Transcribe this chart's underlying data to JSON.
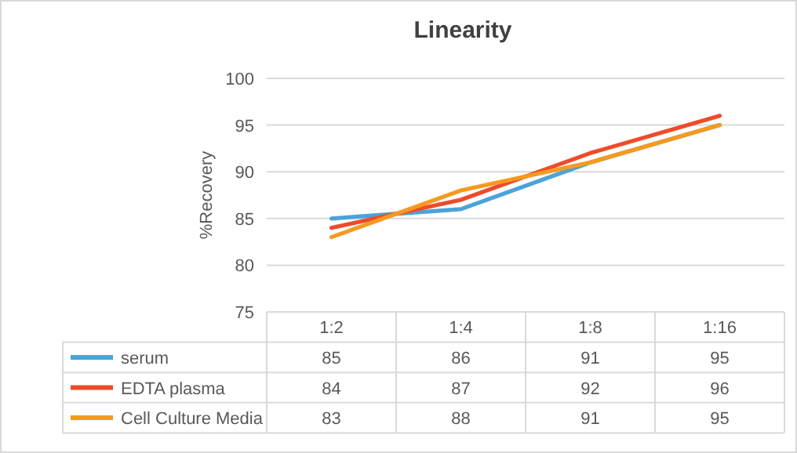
{
  "chart_data": {
    "type": "line",
    "title": "Linearity",
    "ylabel": "%Recovery",
    "categories": [
      "1:2",
      "1:4",
      "1:8",
      "1:16"
    ],
    "series": [
      {
        "name": "serum",
        "color": "#4ba3d9",
        "values": [
          85,
          86,
          91,
          95
        ]
      },
      {
        "name": "EDTA plasma",
        "color": "#ee4b2b",
        "values": [
          84,
          87,
          92,
          96
        ]
      },
      {
        "name": "Cell Culture Media",
        "color": "#f59a1f",
        "values": [
          83,
          88,
          91,
          95
        ]
      }
    ],
    "ylim": [
      75,
      100
    ],
    "yticks": [
      75,
      80,
      85,
      90,
      95,
      100
    ],
    "grid": "y",
    "legend": "bottom",
    "data_labels": true,
    "marker": "none",
    "line_style": "solid"
  }
}
